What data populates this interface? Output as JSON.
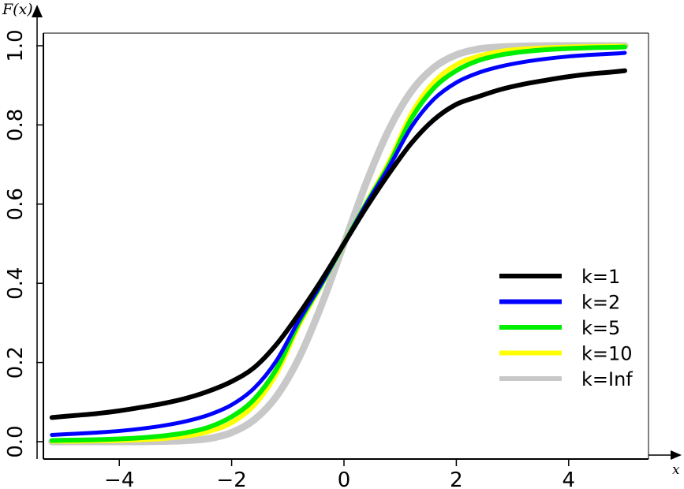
{
  "chart_data": {
    "type": "line",
    "title": "",
    "xlabel": "x",
    "ylabel": "F(x)",
    "xlim": [
      -5.2,
      5.0
    ],
    "ylim": [
      0.0,
      1.0
    ],
    "grid": false,
    "legend_position": "bottom-right",
    "x_ticks": [
      -4,
      -2,
      0,
      2,
      4
    ],
    "x_tick_labels": [
      "−4",
      "−2",
      "0",
      "2",
      "4"
    ],
    "y_ticks": [
      0.0,
      0.2,
      0.4,
      0.6,
      0.8,
      1.0
    ],
    "y_tick_labels": [
      "0.0",
      "0.2",
      "0.4",
      "0.6",
      "0.8",
      "1.0"
    ],
    "x": [
      -5.2,
      -4.8,
      -4.4,
      -4.0,
      -3.6,
      -3.2,
      -2.8,
      -2.4,
      -2.0,
      -1.6,
      -1.2,
      -0.8,
      -0.4,
      0.0,
      0.4,
      0.8,
      1.2,
      1.6,
      2.0,
      2.4,
      2.8,
      3.2,
      3.6,
      4.0,
      4.4,
      4.8,
      5.0
    ],
    "series": [
      {
        "name": "k=1",
        "color": "#000000",
        "values": [
          0.061,
          0.066,
          0.071,
          0.078,
          0.087,
          0.097,
          0.11,
          0.128,
          0.152,
          0.187,
          0.246,
          0.323,
          0.408,
          0.5,
          0.592,
          0.677,
          0.754,
          0.813,
          0.852,
          0.872,
          0.89,
          0.903,
          0.913,
          0.922,
          0.929,
          0.934,
          0.937
        ]
      },
      {
        "name": "k=2",
        "color": "#0000ff",
        "values": [
          0.017,
          0.02,
          0.023,
          0.027,
          0.033,
          0.041,
          0.052,
          0.068,
          0.093,
          0.135,
          0.205,
          0.307,
          0.4,
          0.5,
          0.6,
          0.693,
          0.795,
          0.865,
          0.907,
          0.932,
          0.948,
          0.959,
          0.967,
          0.973,
          0.977,
          0.98,
          0.982
        ]
      },
      {
        "name": "k=5",
        "color": "#00ee00",
        "values": [
          0.003,
          0.004,
          0.005,
          0.007,
          0.01,
          0.015,
          0.023,
          0.037,
          0.063,
          0.107,
          0.184,
          0.301,
          0.398,
          0.5,
          0.602,
          0.699,
          0.816,
          0.893,
          0.937,
          0.963,
          0.977,
          0.985,
          0.99,
          0.993,
          0.995,
          0.996,
          0.997
        ]
      },
      {
        "name": "k=10",
        "color": "#ffff00",
        "values": [
          0.001,
          0.001,
          0.002,
          0.003,
          0.005,
          0.008,
          0.014,
          0.026,
          0.048,
          0.092,
          0.172,
          0.294,
          0.396,
          0.5,
          0.604,
          0.706,
          0.828,
          0.908,
          0.952,
          0.974,
          0.986,
          0.992,
          0.995,
          0.997,
          0.998,
          0.999,
          0.999
        ]
      },
      {
        "name": "k=Inf",
        "color": "#c8c8c8",
        "values": [
          0.0,
          0.0,
          0.0,
          0.0,
          0.0,
          0.001,
          0.003,
          0.008,
          0.023,
          0.055,
          0.115,
          0.212,
          0.345,
          0.5,
          0.655,
          0.788,
          0.885,
          0.945,
          0.977,
          0.992,
          0.997,
          0.999,
          1.0,
          1.0,
          1.0,
          1.0,
          1.0
        ]
      }
    ],
    "legend_labels": [
      "k=1",
      "k=2",
      "k=5",
      "k=10",
      "k=Inf"
    ]
  }
}
